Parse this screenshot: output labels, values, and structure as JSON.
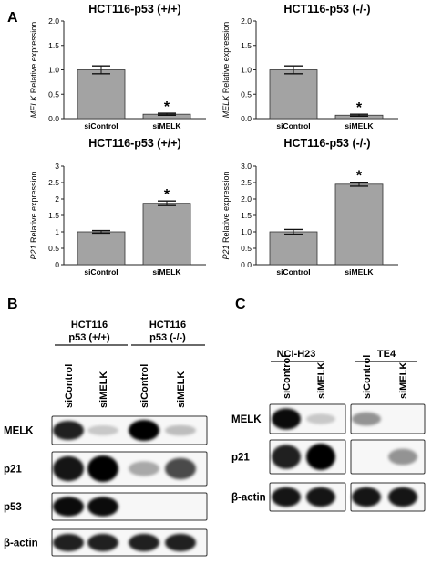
{
  "panel_A": {
    "letter": "A",
    "star_symbol": "*",
    "ylabel_suffix": " Relative expression",
    "bar_color": "#a3a3a3",
    "charts": [
      {
        "title": "HCT116-p53 (+/+)",
        "gene": "MELK"
      },
      {
        "title": "HCT116-p53 (-/-)",
        "gene": "MELK"
      },
      {
        "title": "HCT116-p53 (+/+)",
        "gene": "P21"
      },
      {
        "title": "HCT116-p53 (-/-)",
        "gene": "P21"
      }
    ]
  },
  "chart_data": [
    {
      "type": "bar",
      "title": "HCT116-p53 (+/+)",
      "ylabel": "MELK Relative expression",
      "categories": [
        "siControl",
        "siMELK"
      ],
      "values": [
        1.0,
        0.09
      ],
      "errors": [
        0.08,
        0.02
      ],
      "significant": [
        false,
        true
      ],
      "ylim": [
        0,
        2.0
      ],
      "yticks": [
        "0.0",
        "0.5",
        "1.0",
        "1.5",
        "2.0"
      ]
    },
    {
      "type": "bar",
      "title": "HCT116-p53 (-/-)",
      "ylabel": "MELK Relative expression",
      "categories": [
        "siControl",
        "siMELK"
      ],
      "values": [
        1.0,
        0.07
      ],
      "errors": [
        0.08,
        0.02
      ],
      "significant": [
        false,
        true
      ],
      "ylim": [
        0,
        2.0
      ],
      "yticks": [
        "0.0",
        "0.5",
        "1.0",
        "1.5",
        "2.0"
      ]
    },
    {
      "type": "bar",
      "title": "HCT116-p53 (+/+)",
      "ylabel": "P21 Relative expression",
      "categories": [
        "siControl",
        "siMELK"
      ],
      "values": [
        1.0,
        1.87
      ],
      "errors": [
        0.04,
        0.07
      ],
      "significant": [
        false,
        true
      ],
      "ylim": [
        0,
        3.0
      ],
      "yticks": [
        "0",
        "0.5",
        "1",
        "1.5",
        "2",
        "2.5",
        "3"
      ]
    },
    {
      "type": "bar",
      "title": "HCT116-p53 (-/-)",
      "ylabel": "P21 Relative expression",
      "categories": [
        "siControl",
        "siMELK"
      ],
      "values": [
        1.0,
        2.45
      ],
      "errors": [
        0.07,
        0.06
      ],
      "significant": [
        false,
        true
      ],
      "ylim": [
        0,
        3.0
      ],
      "yticks": [
        "0.0",
        "0.5",
        "1.0",
        "1.5",
        "2.0",
        "2.5",
        "3.0"
      ]
    }
  ],
  "panel_B": {
    "letter": "B",
    "groups": [
      {
        "line1": "HCT116",
        "line2": "p53 (+/+)"
      },
      {
        "line1": "HCT116",
        "line2": "p53 (-/-)"
      }
    ],
    "lanes": [
      "siControl",
      "siMELK",
      "siControl",
      "siMELK"
    ],
    "blots": [
      {
        "label": "MELK",
        "bands": [
          0.85,
          0.05,
          1.0,
          0.1
        ]
      },
      {
        "label": "p21",
        "bands": [
          0.9,
          1.0,
          0.2,
          0.65
        ]
      },
      {
        "label": "p53",
        "bands": [
          0.95,
          0.95
        ]
      },
      {
        "label": "β-actin",
        "bands": [
          0.85,
          0.85,
          0.85,
          0.85
        ]
      }
    ]
  },
  "panel_C": {
    "letter": "C",
    "groups": [
      "NCI-H23",
      "TE4"
    ],
    "lanes": [
      "siControl",
      "siMELK",
      "siControl",
      "siMELK"
    ],
    "blots": [
      {
        "label": "MELK",
        "bands": [
          0.95,
          0.05,
          0.3,
          0.0
        ]
      },
      {
        "label": "p21",
        "bands": [
          0.85,
          1.0,
          0.0,
          0.3
        ]
      },
      {
        "label": "β-actin",
        "bands": [
          0.9,
          0.9,
          0.9,
          0.9
        ]
      }
    ]
  }
}
